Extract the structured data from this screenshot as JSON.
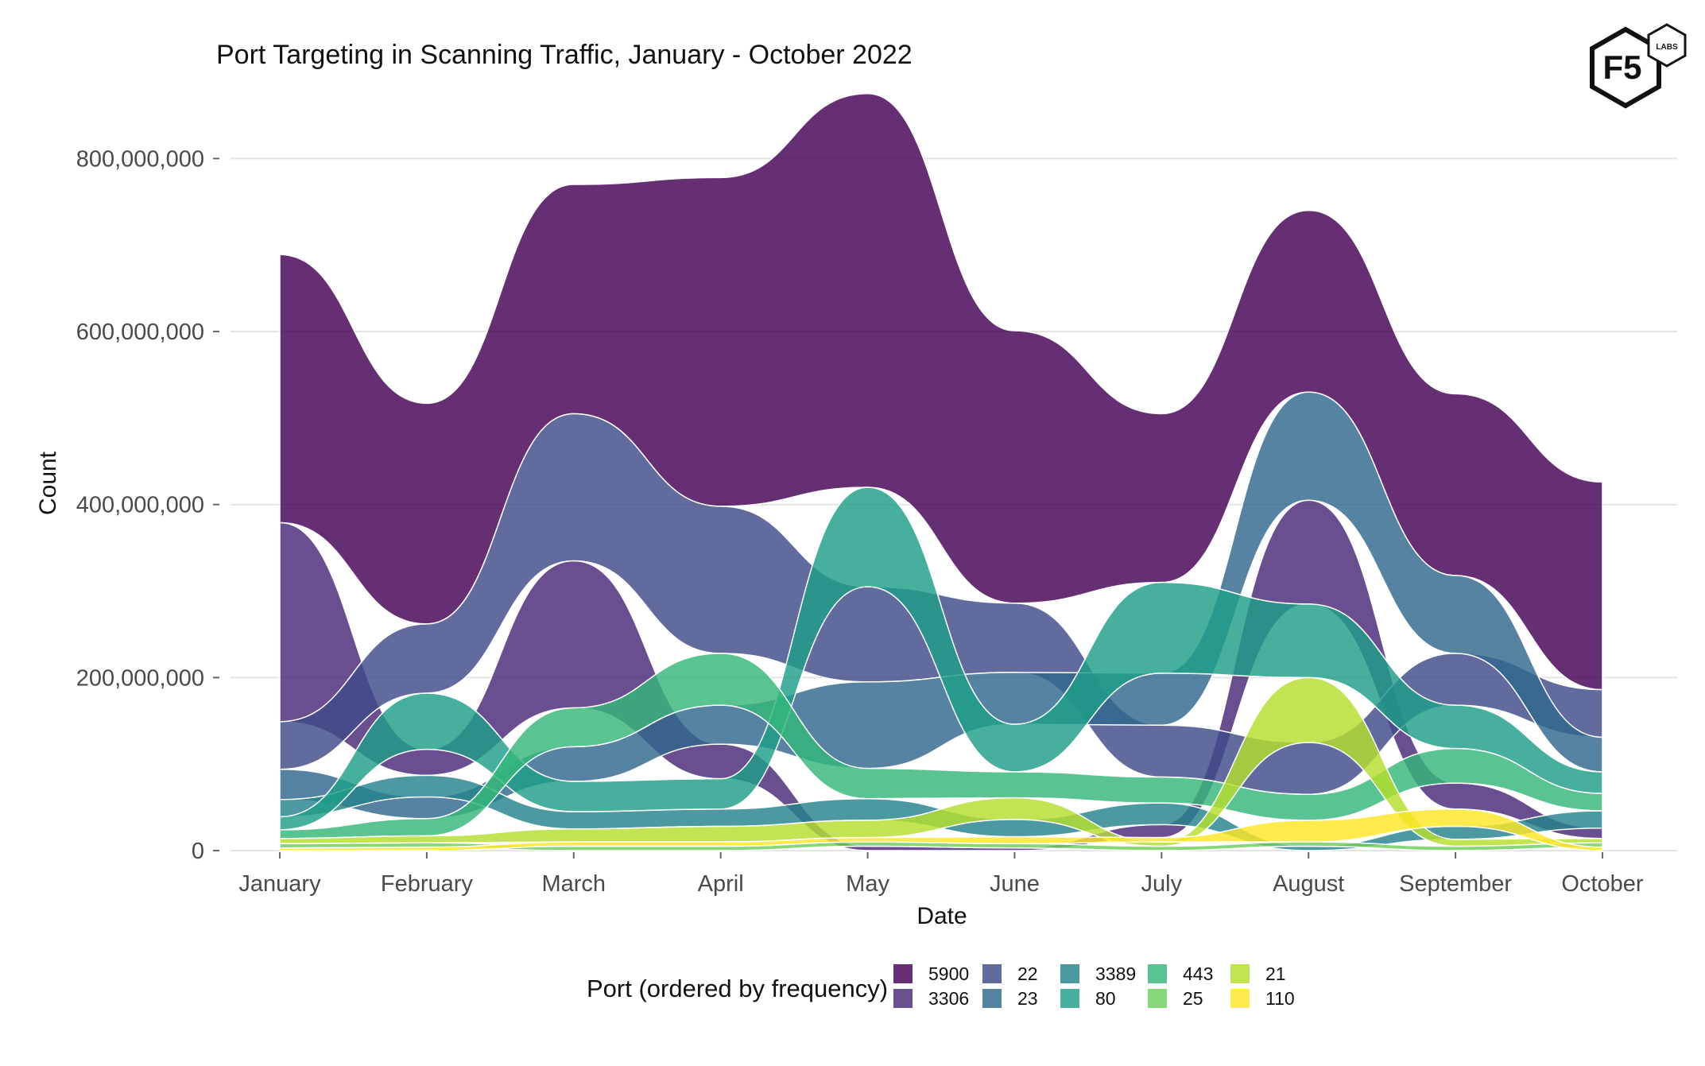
{
  "chart_data": {
    "type": "area",
    "title": "Port Targeting in Scanning Traffic, January - October 2022",
    "xlabel": "Date",
    "ylabel": "Count",
    "categories": [
      "January",
      "February",
      "March",
      "April",
      "May",
      "June",
      "July",
      "August",
      "September",
      "October"
    ],
    "ylim": [
      0,
      850000000
    ],
    "yticks": [
      0,
      200000000,
      400000000,
      600000000,
      800000000
    ],
    "ytick_labels": [
      "0",
      "200,000,000",
      "400,000,000",
      "600,000,000",
      "800,000,000"
    ],
    "grid": true,
    "legend_title": "Port (ordered by frequency)",
    "legend_position": "bottom",
    "series": [
      {
        "name": "5900",
        "color": "#440154",
        "values": [
          310000000,
          255000000,
          265000000,
          380000000,
          455000000,
          315000000,
          195000000,
          210000000,
          210000000,
          240000000
        ]
      },
      {
        "name": "3306",
        "color": "#482878",
        "values": [
          230000000,
          30000000,
          170000000,
          40000000,
          5000000,
          3000000,
          15000000,
          120000000,
          30000000,
          12000000
        ]
      },
      {
        "name": "22",
        "color": "#3E4A89",
        "values": [
          55000000,
          80000000,
          170000000,
          170000000,
          110000000,
          80000000,
          60000000,
          60000000,
          60000000,
          55000000
        ]
      },
      {
        "name": "23",
        "color": "#31688E",
        "values": [
          35000000,
          25000000,
          40000000,
          45000000,
          100000000,
          60000000,
          60000000,
          125000000,
          90000000,
          40000000
        ]
      },
      {
        "name": "3389",
        "color": "#26828E",
        "values": [
          20000000,
          25000000,
          20000000,
          20000000,
          25000000,
          20000000,
          25000000,
          5000000,
          15000000,
          20000000
        ]
      },
      {
        "name": "80",
        "color": "#1F9E89",
        "values": [
          15000000,
          65000000,
          35000000,
          35000000,
          115000000,
          55000000,
          105000000,
          85000000,
          50000000,
          25000000
        ]
      },
      {
        "name": "443",
        "color": "#35B779",
        "values": [
          10000000,
          20000000,
          45000000,
          60000000,
          35000000,
          30000000,
          30000000,
          30000000,
          40000000,
          20000000
        ]
      },
      {
        "name": "25",
        "color": "#6DCD59",
        "values": [
          5000000,
          5000000,
          5000000,
          5000000,
          5000000,
          5000000,
          5000000,
          5000000,
          5000000,
          5000000
        ]
      },
      {
        "name": "21",
        "color": "#B4DE2C",
        "values": [
          6000000,
          8000000,
          15000000,
          18000000,
          20000000,
          25000000,
          5000000,
          75000000,
          8000000,
          5000000
        ]
      },
      {
        "name": "110",
        "color": "#FDE725",
        "values": [
          3000000,
          4000000,
          5000000,
          5000000,
          5000000,
          8000000,
          5000000,
          25000000,
          20000000,
          4000000
        ]
      }
    ]
  },
  "logo": {
    "text": "F5",
    "subtext": "LABS"
  }
}
